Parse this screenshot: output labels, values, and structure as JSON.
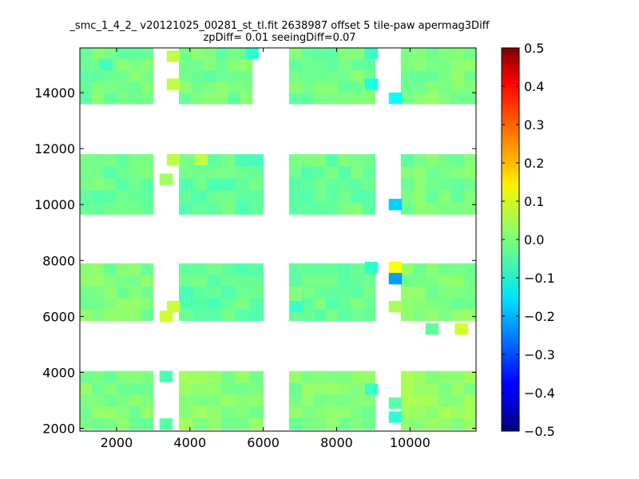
{
  "chart_data": {
    "type": "heatmap",
    "title": "_smc_1_4_2_ v20121025_00281_st_tl.fit 2638987 offset 5 tile-paw apermag3Diff",
    "subtitle": "zpDiff= 0.01 seeingDiff=0.07",
    "xlabel": "",
    "ylabel": "",
    "xlim": [
      1000,
      11800
    ],
    "ylim": [
      1900,
      15600
    ],
    "x_ticks": [
      2000,
      4000,
      6000,
      8000,
      10000
    ],
    "y_ticks": [
      2000,
      4000,
      6000,
      8000,
      10000,
      12000,
      14000
    ],
    "colorbar": {
      "range": [
        -0.5,
        0.5
      ],
      "ticks": [
        0.5,
        0.4,
        0.3,
        0.2,
        0.1,
        0.0,
        -0.1,
        -0.2,
        -0.3,
        -0.4,
        -0.5
      ],
      "tick_labels": [
        "0.5",
        "0.4",
        "0.3",
        "0.2",
        "0.1",
        "0.0",
        "−0.1",
        "−0.2",
        "−0.3",
        "−0.4",
        "−0.5"
      ],
      "colormap": "jet"
    },
    "cell_size": [
      360,
      410
    ],
    "blocks": [
      {
        "x0": 1000,
        "x1": 3000,
        "y0": 13600,
        "y1": 15600,
        "base": -0.01
      },
      {
        "x0": 3700,
        "x1": 5700,
        "y0": 13600,
        "y1": 15600,
        "base": -0.01
      },
      {
        "x0": 6700,
        "x1": 9050,
        "y0": 13600,
        "y1": 15600,
        "base": -0.01
      },
      {
        "x0": 9750,
        "x1": 11800,
        "y0": 13600,
        "y1": 15600,
        "base": 0.0
      },
      {
        "x0": 1000,
        "x1": 3000,
        "y0": 9650,
        "y1": 11800,
        "base": -0.02
      },
      {
        "x0": 3700,
        "x1": 6000,
        "y0": 9650,
        "y1": 11800,
        "base": -0.03
      },
      {
        "x0": 6700,
        "x1": 9050,
        "y0": 9650,
        "y1": 11800,
        "base": -0.02
      },
      {
        "x0": 9750,
        "x1": 11800,
        "y0": 9650,
        "y1": 11800,
        "base": -0.01
      },
      {
        "x0": 1000,
        "x1": 3000,
        "y0": 5850,
        "y1": 7900,
        "base": 0.0
      },
      {
        "x0": 3700,
        "x1": 6000,
        "y0": 5850,
        "y1": 7900,
        "base": -0.03
      },
      {
        "x0": 6700,
        "x1": 9050,
        "y0": 5850,
        "y1": 7900,
        "base": -0.02
      },
      {
        "x0": 9750,
        "x1": 11800,
        "y0": 5850,
        "y1": 7900,
        "base": 0.0
      },
      {
        "x0": 1000,
        "x1": 3000,
        "y0": 1950,
        "y1": 4050,
        "base": 0.0
      },
      {
        "x0": 3700,
        "x1": 6000,
        "y0": 1950,
        "y1": 4050,
        "base": 0.01
      },
      {
        "x0": 6700,
        "x1": 9050,
        "y0": 1950,
        "y1": 4050,
        "base": 0.0
      },
      {
        "x0": 9750,
        "x1": 11800,
        "y0": 1950,
        "y1": 4050,
        "base": 0.02
      }
    ],
    "special_cells": [
      {
        "x": 3550,
        "y": 15300,
        "value": 0.06
      },
      {
        "x": 3550,
        "y": 14300,
        "value": 0.06
      },
      {
        "x": 1700,
        "y": 15000,
        "value": -0.06
      },
      {
        "x": 5700,
        "y": 15400,
        "value": -0.08
      },
      {
        "x": 8950,
        "y": 15400,
        "value": -0.07
      },
      {
        "x": 9600,
        "y": 13800,
        "value": -0.12
      },
      {
        "x": 8950,
        "y": 14300,
        "value": -0.1
      },
      {
        "x": 3550,
        "y": 11600,
        "value": 0.06
      },
      {
        "x": 4300,
        "y": 11600,
        "value": 0.06
      },
      {
        "x": 3350,
        "y": 10900,
        "value": 0.03
      },
      {
        "x": 9600,
        "y": 10000,
        "value": -0.17
      },
      {
        "x": 9600,
        "y": 7750,
        "value": 0.12
      },
      {
        "x": 9600,
        "y": 7350,
        "value": -0.22
      },
      {
        "x": 8950,
        "y": 7750,
        "value": -0.08
      },
      {
        "x": 9600,
        "y": 6350,
        "value": 0.04
      },
      {
        "x": 3350,
        "y": 6000,
        "value": 0.08
      },
      {
        "x": 3550,
        "y": 6350,
        "value": 0.07
      },
      {
        "x": 6900,
        "y": 6350,
        "value": -0.07
      },
      {
        "x": 10600,
        "y": 5550,
        "value": -0.03
      },
      {
        "x": 11400,
        "y": 5550,
        "value": 0.08
      },
      {
        "x": 3350,
        "y": 3850,
        "value": -0.05
      },
      {
        "x": 8950,
        "y": 3400,
        "value": -0.07
      },
      {
        "x": 9600,
        "y": 2900,
        "value": -0.04
      },
      {
        "x": 9600,
        "y": 2400,
        "value": -0.08
      },
      {
        "x": 3350,
        "y": 2150,
        "value": -0.04
      }
    ]
  }
}
